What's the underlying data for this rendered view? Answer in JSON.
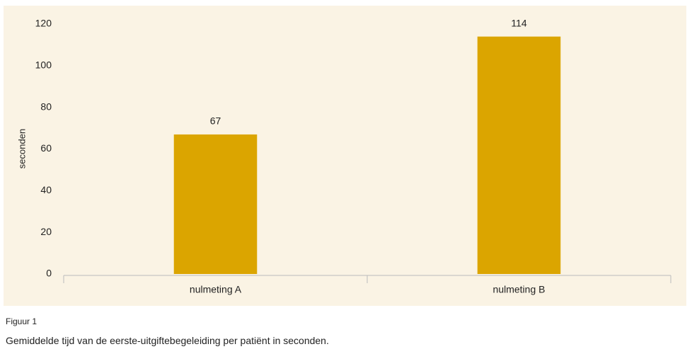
{
  "chart_data": {
    "type": "bar",
    "y_label": "seconden",
    "categories": [
      "nulmeting A",
      "nulmeting B"
    ],
    "values": [
      67,
      114
    ],
    "color": "#dba500",
    "ylim": [
      0,
      120
    ],
    "yticks": [
      0,
      20,
      40,
      60,
      80,
      100,
      120
    ],
    "grid": false,
    "value_labels_shown": true
  },
  "caption": {
    "label": "Figuur 1",
    "text": "Gemiddelde tijd van de eerste-uitgiftebegeleiding per patiënt in seconden."
  }
}
